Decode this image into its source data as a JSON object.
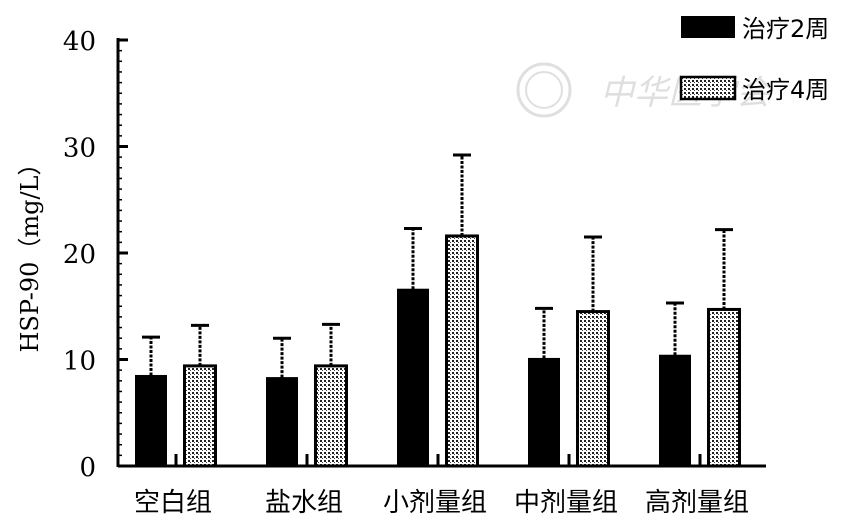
{
  "chart_data": {
    "type": "bar",
    "ylabel": "HSP-90（mg/L）",
    "ylim": [
      0,
      40
    ],
    "yticks": [
      "0",
      "10",
      "20",
      "30",
      "40"
    ],
    "categories": [
      "空白组",
      "盐水组",
      "小剂量组",
      "中剂量组",
      "高剂量组"
    ],
    "series": [
      {
        "name": "治疗2周",
        "values": [
          8.5,
          8.3,
          16.6,
          10.1,
          10.4
        ],
        "errors": [
          3.6,
          3.7,
          5.7,
          4.7,
          4.9
        ],
        "color": "#000000",
        "pattern": "solid"
      },
      {
        "name": "治疗4周",
        "values": [
          9.4,
          9.4,
          21.6,
          14.5,
          14.7
        ],
        "errors": [
          3.8,
          3.9,
          7.6,
          7.0,
          7.5
        ],
        "color": "#9a9a9a",
        "pattern": "dotted"
      }
    ],
    "legend_position": "top-right",
    "grid": false
  },
  "watermark": {
    "text": "中华医学会"
  }
}
